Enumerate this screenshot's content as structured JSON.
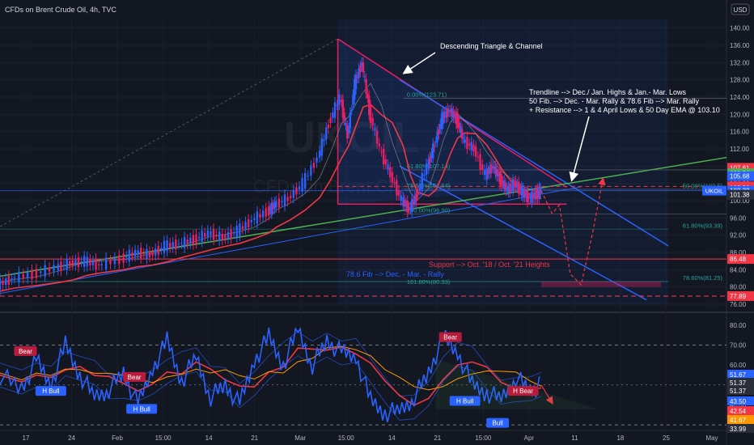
{
  "header": {
    "title": "CFDs on Brent Crude Oil, 4h, TVC",
    "currency": "USD"
  },
  "watermark": {
    "ticker": "UKOIL",
    "name": "CFDs on Brent Crude Oil"
  },
  "colors": {
    "background": "#131722",
    "price_up": "#2962ff",
    "price_down": "#e91e63",
    "ema_fast": "#f23645",
    "ema_slow": "#4caf50",
    "bollinger": "#2962ff",
    "triangle": "#e91e63",
    "channel": "#2962ff",
    "rsi": "#2962ff",
    "rsi_ma_fast": "#f23645",
    "rsi_ma_slow": "#ff9800"
  },
  "chart_data": [
    {
      "type": "candlestick",
      "title": "CFDs on Brent Crude Oil, 4h, TVC",
      "x_ticks": [
        "17",
        "24",
        "Feb",
        "15:00",
        "14",
        "21",
        "Mar",
        "15:00",
        "14",
        "21",
        "15:00",
        "Apr",
        "11",
        "18",
        "25",
        "May"
      ],
      "y_ticks": [
        76,
        80,
        84,
        88,
        92,
        96,
        100,
        104,
        108,
        112,
        116,
        120,
        124,
        128,
        132,
        136,
        140
      ],
      "ylim": [
        74.5,
        142
      ],
      "close_path": [
        [
          0,
          80.5
        ],
        [
          0.02,
          82
        ],
        [
          0.05,
          83
        ],
        [
          0.08,
          84.5
        ],
        [
          0.1,
          85.5
        ],
        [
          0.12,
          86
        ],
        [
          0.14,
          85
        ],
        [
          0.17,
          86.5
        ],
        [
          0.19,
          88
        ],
        [
          0.21,
          87.5
        ],
        [
          0.23,
          89.5
        ],
        [
          0.25,
          90
        ],
        [
          0.27,
          91
        ],
        [
          0.29,
          92.5
        ],
        [
          0.31,
          91.5
        ],
        [
          0.33,
          93
        ],
        [
          0.35,
          95.5
        ],
        [
          0.37,
          97.5
        ],
        [
          0.38,
          99
        ],
        [
          0.4,
          100.5
        ],
        [
          0.42,
          104
        ],
        [
          0.44,
          110
        ],
        [
          0.455,
          118
        ],
        [
          0.47,
          124
        ],
        [
          0.48,
          115
        ],
        [
          0.49,
          127
        ],
        [
          0.5,
          132
        ],
        [
          0.51,
          121
        ],
        [
          0.525,
          112
        ],
        [
          0.54,
          106
        ],
        [
          0.555,
          100
        ],
        [
          0.565,
          98
        ],
        [
          0.575,
          101
        ],
        [
          0.59,
          108
        ],
        [
          0.6,
          113
        ],
        [
          0.61,
          119
        ],
        [
          0.62,
          121
        ],
        [
          0.63,
          119
        ],
        [
          0.64,
          114
        ],
        [
          0.655,
          112
        ],
        [
          0.67,
          106
        ],
        [
          0.68,
          108
        ],
        [
          0.69,
          105
        ],
        [
          0.7,
          102.5
        ],
        [
          0.71,
          104
        ],
        [
          0.72,
          102
        ],
        [
          0.73,
          100.5
        ],
        [
          0.74,
          101.5
        ],
        [
          0.745,
          102.3
        ]
      ],
      "projection_path": [
        [
          0.745,
          102.3
        ],
        [
          0.76,
          97
        ],
        [
          0.77,
          99
        ],
        [
          0.785,
          83
        ],
        [
          0.8,
          80.5
        ],
        [
          0.815,
          92
        ],
        [
          0.83,
          105
        ]
      ],
      "overlays": [
        {
          "name": "Descending Triangle & Channel",
          "kind": "pattern"
        },
        {
          "name": "78.6 Fib --> Dec. - Mar. - Rally",
          "value": 81.25
        },
        {
          "name": "Support --> Oct. '18 / Oct. '21 Heights",
          "value": 86.48
        }
      ],
      "fib_levels": [
        {
          "label": "0.00%(123.71)",
          "value": 123.71
        },
        {
          "label": "61.80%(107.14)",
          "value": 107.14
        },
        {
          "label": "78.60%(102.64)",
          "value": 102.64
        },
        {
          "label": "100.00%(96.90)",
          "value": 96.9
        },
        {
          "label": "50.00%(102.5)",
          "value": 102.5
        },
        {
          "label": "61.80%(93.39)",
          "value": 93.39
        },
        {
          "label": "78.60%(81.25)",
          "value": 81.25
        },
        {
          "label": "161.80%(80.33)",
          "value": 80.33
        }
      ],
      "price_labels": [
        {
          "value": "107.61",
          "color": "#f23645"
        },
        {
          "value": "106.34",
          "color": "#4caf50"
        },
        {
          "value": "105.68",
          "color": "#2962ff"
        },
        {
          "value": "103.31",
          "color": "#f23645"
        },
        {
          "value": "102.96",
          "color": "#f23645"
        },
        {
          "value": "102.32",
          "color": "#2962ff",
          "tag": "UKOIL"
        },
        {
          "value": "101.38",
          "color": "#2a2e39"
        },
        {
          "value": "86.48",
          "color": "#f23645"
        },
        {
          "value": "77.89",
          "color": "#f23645"
        }
      ]
    },
    {
      "type": "line",
      "title": "",
      "y_ticks": [
        30,
        40,
        50,
        60,
        70,
        80
      ],
      "ylim": [
        28,
        84
      ],
      "rsi_path": [
        [
          0,
          55
        ],
        [
          0.03,
          48
        ],
        [
          0.05,
          62
        ],
        [
          0.07,
          50
        ],
        [
          0.09,
          70
        ],
        [
          0.11,
          55
        ],
        [
          0.13,
          44
        ],
        [
          0.15,
          48
        ],
        [
          0.17,
          56
        ],
        [
          0.19,
          40
        ],
        [
          0.21,
          58
        ],
        [
          0.23,
          72
        ],
        [
          0.25,
          52
        ],
        [
          0.27,
          64
        ],
        [
          0.29,
          44
        ],
        [
          0.31,
          50
        ],
        [
          0.33,
          40
        ],
        [
          0.35,
          62
        ],
        [
          0.37,
          74
        ],
        [
          0.39,
          60
        ],
        [
          0.41,
          78
        ],
        [
          0.43,
          60
        ],
        [
          0.45,
          72
        ],
        [
          0.47,
          66
        ],
        [
          0.49,
          64
        ],
        [
          0.51,
          42
        ],
        [
          0.53,
          36
        ],
        [
          0.55,
          37
        ],
        [
          0.57,
          44
        ],
        [
          0.59,
          56
        ],
        [
          0.61,
          74
        ],
        [
          0.63,
          66
        ],
        [
          0.65,
          50
        ],
        [
          0.67,
          46
        ],
        [
          0.69,
          43
        ],
        [
          0.71,
          54
        ],
        [
          0.73,
          47
        ],
        [
          0.745,
          50
        ]
      ],
      "projection_path": [
        [
          0.745,
          50
        ],
        [
          0.76,
          41
        ]
      ],
      "labels": [
        {
          "text": "Bear",
          "kind": "bear"
        },
        {
          "text": "Bear",
          "kind": "bear"
        },
        {
          "text": "Bear",
          "kind": "bear"
        },
        {
          "text": "H Bear",
          "kind": "bear"
        },
        {
          "text": "H Bull",
          "kind": "bull"
        },
        {
          "text": "H Bull",
          "kind": "bull"
        },
        {
          "text": "H Bull",
          "kind": "bull"
        },
        {
          "text": "Bull",
          "kind": "bull"
        }
      ],
      "value_labels": [
        {
          "value": "51.67",
          "color": "#2962ff"
        },
        {
          "value": "51.37",
          "color": "#2a2e39"
        },
        {
          "value": "51.37",
          "color": "#2a2e39"
        },
        {
          "value": "43.50",
          "color": "#2962ff"
        },
        {
          "value": "42.54",
          "color": "#f23645"
        },
        {
          "value": "41.67",
          "color": "#ff9800"
        },
        {
          "value": "33.99",
          "color": "#2a2e39"
        }
      ]
    }
  ],
  "annotations": {
    "triangle": "Descending Triangle & Channel",
    "trendline": "Trendline --> Dec./ Jan. Highs & Jan.- Mar. Lows",
    "fib50": "50 Fib. --> Dec. - Mar. Rally & 78.6 Fib --> Mar. Rally",
    "resistance": "+ Resistance --> 1 & 4 April Lows & 50 Day EMA @ 103.10",
    "support": "Support --> Oct. '18 / Oct. '21 Heights",
    "fib786": "78.6 Fib --> Dec. - Mar. - Rally"
  }
}
